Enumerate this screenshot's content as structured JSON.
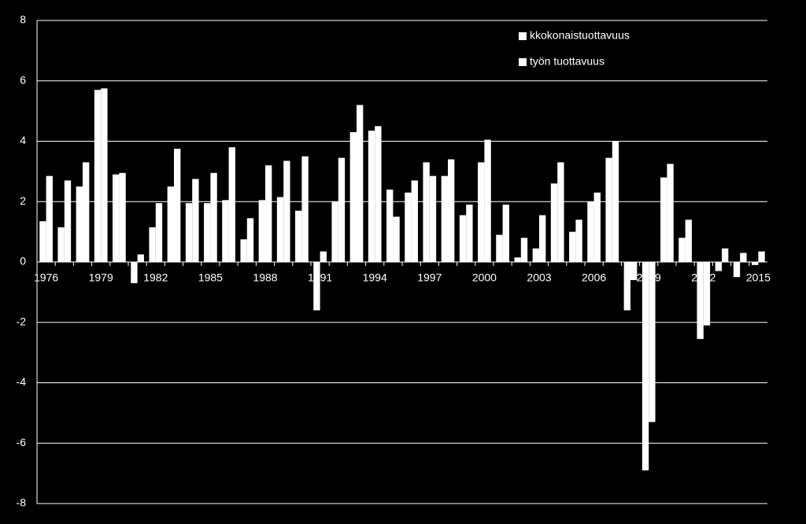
{
  "chart_data": {
    "type": "bar",
    "categories": [
      "1976",
      null,
      null,
      "1979",
      null,
      null,
      "1982",
      null,
      null,
      "1985",
      null,
      null,
      "1988",
      null,
      null,
      "1991",
      null,
      null,
      "1994",
      null,
      null,
      "1997",
      null,
      null,
      "2000",
      null,
      null,
      "2003",
      null,
      null,
      "2006",
      null,
      null,
      "2009",
      null,
      null,
      "2012",
      null,
      null,
      "2015"
    ],
    "series": [
      {
        "name": "kkokonaistuottavuus",
        "color": "#ffffff",
        "values": [
          1.35,
          1.15,
          2.5,
          5.7,
          2.9,
          -0.7,
          1.15,
          2.5,
          1.95,
          1.95,
          2.05,
          0.75,
          2.05,
          2.15,
          1.7,
          -1.6,
          2.0,
          4.3,
          4.35,
          2.4,
          2.3,
          3.3,
          2.85,
          1.55,
          3.3,
          0.9,
          0.15,
          0.45,
          2.6,
          1.0,
          2.0,
          3.45,
          -1.6,
          -6.9,
          2.8,
          0.8,
          -2.55,
          -0.3,
          -0.5,
          -0.1
        ]
      },
      {
        "name": "työn tuottavuus",
        "color": "#ffffff",
        "values": [
          2.85,
          2.7,
          3.3,
          5.75,
          2.95,
          0.25,
          1.95,
          3.75,
          2.75,
          2.95,
          3.8,
          1.45,
          3.2,
          3.35,
          3.5,
          0.35,
          3.45,
          5.2,
          4.5,
          1.5,
          2.7,
          2.85,
          3.4,
          1.9,
          4.05,
          1.9,
          0.8,
          1.55,
          3.3,
          1.4,
          2.3,
          4.0,
          -0.6,
          -5.3,
          3.25,
          1.4,
          -2.1,
          0.45,
          0.3,
          0.35
        ]
      }
    ],
    "ylim": [
      -8,
      8
    ],
    "yticks": [
      -8,
      -6,
      -4,
      -2,
      0,
      2,
      4,
      6,
      8
    ],
    "grid": true,
    "legend": "top-right"
  }
}
